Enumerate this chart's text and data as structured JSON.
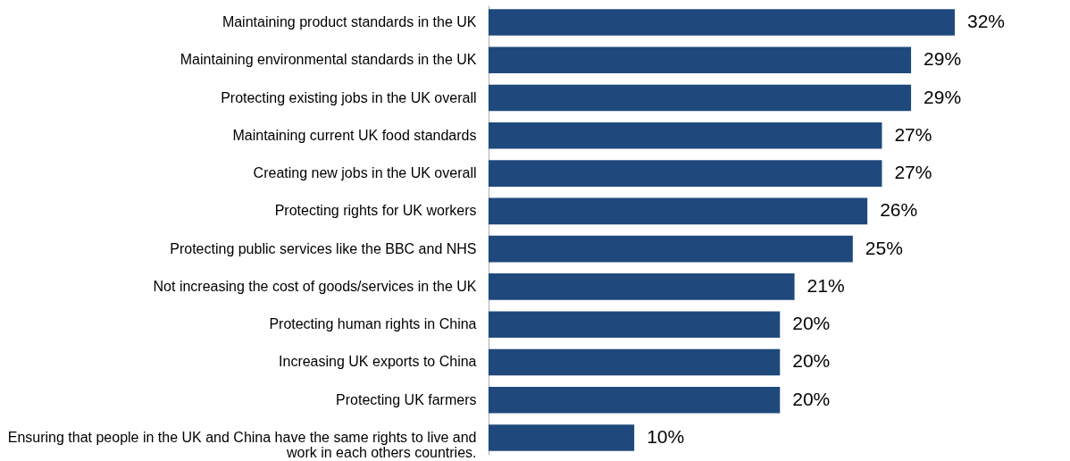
{
  "chart_data": {
    "type": "bar",
    "orientation": "horizontal",
    "categories": [
      "Maintaining product standards in the UK",
      "Maintaining environmental standards in the UK",
      "Protecting existing jobs in the UK overall",
      "Maintaining current UK food standards",
      "Creating new jobs in the UK overall",
      "Protecting rights for UK workers",
      "Protecting public services like the BBC and NHS",
      "Not increasing the cost of goods/services in the UK",
      "Protecting human rights in China",
      "Increasing UK exports to China",
      "Protecting UK farmers",
      "Ensuring that people in the UK and China have the same rights to live and work in each others countries."
    ],
    "values": [
      32,
      29,
      29,
      27,
      27,
      26,
      25,
      21,
      20,
      20,
      20,
      10
    ],
    "value_labels": [
      "32%",
      "29%",
      "29%",
      "27%",
      "27%",
      "26%",
      "25%",
      "21%",
      "20%",
      "20%",
      "20%",
      "10%"
    ],
    "color": "#1f497d",
    "grid": false
  }
}
